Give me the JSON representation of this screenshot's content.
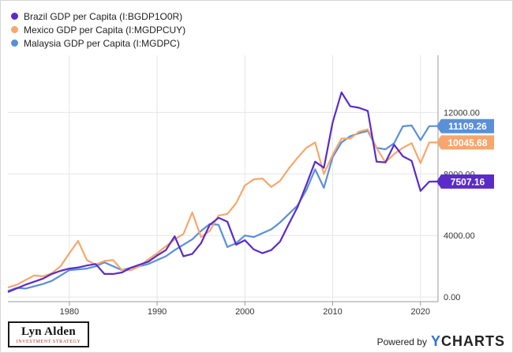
{
  "branding": {
    "logo_name": "Lyn Alden",
    "logo_tagline": "INVESTMENT STRATEGY",
    "powered_by": "Powered by",
    "ycharts_y": "Y",
    "ycharts_rest": "CHARTS"
  },
  "chart_data": {
    "type": "line",
    "xlim": [
      1973,
      2022
    ],
    "ylim": [
      -300,
      15200
    ],
    "x_ticks": [
      1980,
      1990,
      2000,
      2010,
      2020
    ],
    "x_tick_labels": [
      "1980",
      "1990",
      "2000",
      "2010",
      "2020"
    ],
    "y_ticks": [
      0,
      4000,
      8000,
      12000
    ],
    "y_tick_labels": [
      "0.00",
      "4000.00",
      "8000.00",
      "12000.00"
    ],
    "grid": true,
    "legend_position": "top-left",
    "series": [
      {
        "name": "Brazil GDP per Capita (I:BGDP1O0R)",
        "color": "#5b2bc9",
        "last_label": "7507.16",
        "x": [
          1973,
          1974,
          1975,
          1976,
          1977,
          1978,
          1979,
          1980,
          1981,
          1982,
          1983,
          1984,
          1985,
          1986,
          1987,
          1988,
          1989,
          1990,
          1991,
          1992,
          1993,
          1994,
          1995,
          1996,
          1997,
          1998,
          1999,
          2000,
          2001,
          2002,
          2003,
          2004,
          2005,
          2006,
          2007,
          2008,
          2009,
          2010,
          2011,
          2012,
          2013,
          2014,
          2015,
          2016,
          2017,
          2018,
          2019,
          2020,
          2021,
          2022
        ],
        "y": [
          320,
          560,
          800,
          1000,
          1200,
          1500,
          1700,
          1850,
          1920,
          2050,
          2150,
          1500,
          1500,
          1600,
          1900,
          2100,
          2300,
          2700,
          3050,
          3950,
          2650,
          2800,
          3500,
          4700,
          5150,
          4900,
          3400,
          3700,
          3100,
          2850,
          3050,
          3600,
          4750,
          5850,
          7300,
          8800,
          8400,
          11350,
          13300,
          12400,
          12300,
          12100,
          8800,
          8750,
          9900,
          9150,
          8850,
          6900,
          7500,
          7507.16
        ]
      },
      {
        "name": "Mexico GDP per Capita (I:MGDPCUY)",
        "color": "#f8a66d",
        "last_label": "10045.68",
        "x": [
          1973,
          1974,
          1975,
          1976,
          1977,
          1978,
          1979,
          1980,
          1981,
          1982,
          1983,
          1984,
          1985,
          1986,
          1987,
          1988,
          1989,
          1990,
          1991,
          1992,
          1993,
          1994,
          1995,
          1996,
          1997,
          1998,
          1999,
          2000,
          2001,
          2002,
          2003,
          2004,
          2005,
          2006,
          2007,
          2008,
          2009,
          2010,
          2011,
          2012,
          2013,
          2014,
          2015,
          2016,
          2017,
          2018,
          2019,
          2020,
          2021,
          2022
        ],
        "y": [
          620,
          800,
          1100,
          1400,
          1350,
          1550,
          2000,
          2850,
          3650,
          2400,
          2100,
          2350,
          2400,
          1750,
          1750,
          2000,
          2450,
          2850,
          3300,
          3750,
          4100,
          5500,
          3900,
          4300,
          5300,
          5400,
          6100,
          7250,
          7650,
          7700,
          7150,
          7550,
          8350,
          9050,
          9700,
          10050,
          8000,
          9250,
          10300,
          10300,
          10750,
          10900,
          9700,
          8750,
          9300,
          9700,
          10000,
          8700,
          10045.68,
          10045.68
        ]
      },
      {
        "name": "Malaysia GDP per Capita (I:MGDPC)",
        "color": "#5b8fd8",
        "last_label": "11109.26",
        "x": [
          1973,
          1974,
          1975,
          1976,
          1977,
          1978,
          1979,
          1980,
          1981,
          1982,
          1983,
          1984,
          1985,
          1986,
          1987,
          1988,
          1989,
          1990,
          1991,
          1992,
          1993,
          1994,
          1995,
          1996,
          1997,
          1998,
          1999,
          2000,
          2001,
          2002,
          2003,
          2004,
          2005,
          2006,
          2007,
          2008,
          2009,
          2010,
          2011,
          2012,
          2013,
          2014,
          2015,
          2016,
          2017,
          2018,
          2019,
          2020,
          2021,
          2022
        ],
        "y": [
          400,
          600,
          550,
          700,
          850,
          1050,
          1400,
          1750,
          1800,
          1850,
          2000,
          2250,
          2000,
          1750,
          1900,
          2000,
          2150,
          2400,
          2650,
          3050,
          3400,
          3750,
          4300,
          4750,
          4700,
          3250,
          3500,
          4000,
          3900,
          4150,
          4400,
          4850,
          5400,
          5950,
          6950,
          8300,
          7100,
          9100,
          10050,
          10450,
          10650,
          10800,
          9700,
          9600,
          10000,
          11100,
          11150,
          10200,
          11109.26,
          11109.26
        ]
      }
    ]
  }
}
